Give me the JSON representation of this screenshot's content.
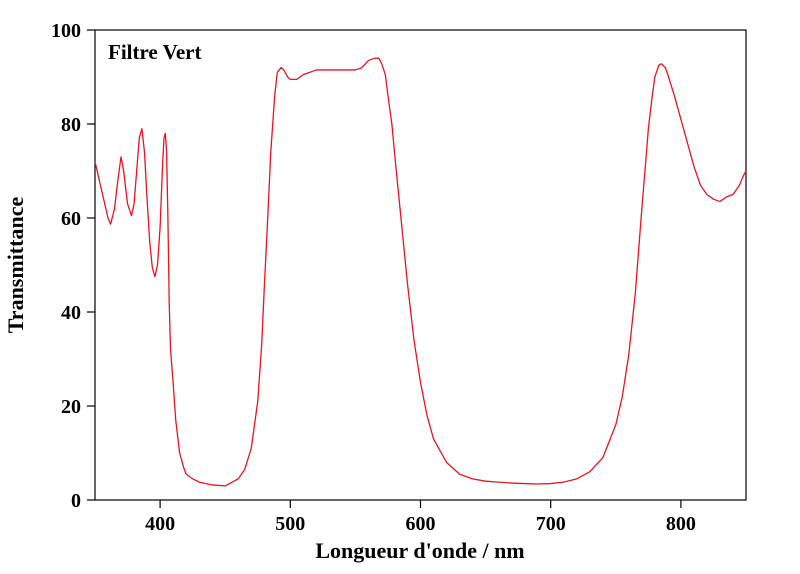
{
  "chart_data": {
    "type": "line",
    "annotation": "Filtre Vert",
    "xlabel": "Longueur d'onde / nm",
    "ylabel": "Transmittance",
    "xlim": [
      350,
      850
    ],
    "ylim": [
      0,
      100
    ],
    "xticks": [
      400,
      500,
      600,
      700,
      800
    ],
    "yticks": [
      0,
      20,
      40,
      60,
      80,
      100
    ],
    "grid": false,
    "series": [
      {
        "color": "#e8141e",
        "x": [
          350,
          355,
          360,
          362,
          365,
          368,
          370,
          372,
          375,
          378,
          380,
          382,
          384,
          386,
          388,
          390,
          392,
          394,
          396,
          398,
          400,
          402,
          403,
          404,
          405,
          406,
          407,
          408,
          410,
          412,
          415,
          418,
          420,
          425,
          430,
          440,
          450,
          460,
          465,
          470,
          475,
          478,
          480,
          483,
          485,
          488,
          490,
          493,
          495,
          498,
          500,
          505,
          510,
          520,
          530,
          540,
          550,
          555,
          560,
          565,
          568,
          570,
          573,
          575,
          578,
          580,
          585,
          590,
          595,
          600,
          605,
          610,
          620,
          630,
          640,
          650,
          660,
          670,
          680,
          690,
          700,
          710,
          720,
          730,
          740,
          750,
          755,
          760,
          765,
          770,
          773,
          775,
          778,
          780,
          783,
          785,
          788,
          790,
          795,
          800,
          805,
          810,
          815,
          820,
          825,
          830,
          835,
          840,
          845,
          848,
          850
        ],
        "y": [
          72,
          66,
          60,
          58.7,
          62,
          69,
          73,
          70,
          63,
          60.5,
          63,
          70,
          77,
          79,
          74,
          64,
          55,
          49.5,
          47.5,
          50,
          58,
          72,
          77,
          78,
          74,
          60,
          42,
          32,
          25,
          17,
          10,
          7,
          5.5,
          4.5,
          3.8,
          3.2,
          3.0,
          4.5,
          6.5,
          11,
          21,
          33,
          45,
          62,
          74,
          86,
          91,
          92,
          91.5,
          90,
          89.5,
          89.5,
          90.5,
          91.5,
          91.5,
          91.5,
          91.5,
          92,
          93.5,
          94,
          94,
          93,
          90.5,
          86,
          80,
          74,
          60,
          46,
          34,
          25,
          18,
          13,
          8,
          5.5,
          4.5,
          4.0,
          3.8,
          3.6,
          3.5,
          3.4,
          3.5,
          3.8,
          4.5,
          6.0,
          9.0,
          16,
          22,
          31,
          44,
          62,
          72,
          79,
          86,
          90,
          92.5,
          92.8,
          92,
          90.5,
          86,
          81,
          76,
          71,
          67,
          65,
          64,
          63.5,
          64.5,
          65,
          67,
          69,
          70
        ]
      }
    ]
  }
}
